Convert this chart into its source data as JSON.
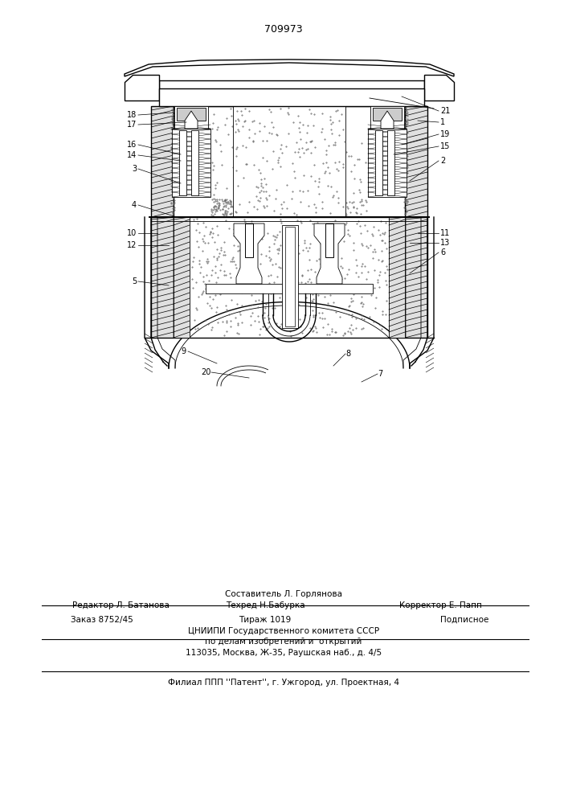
{
  "patent_number": "709973",
  "bg_color": "#ffffff",
  "line_color": "#000000",
  "footer_text_1": "Составитель Л. Горлянова",
  "footer_text_2_left": "Редактор Л. Батанова",
  "footer_text_2_mid": "Техред Н.Бабурка",
  "footer_text_2_right": "Корректор Е. Папп",
  "footer_text_3_left": "Заказ 8752/45",
  "footer_text_3_mid": "Тираж 1019",
  "footer_text_3_right": "Подписное",
  "footer_text_4": "ЦНИИПИ Государственного комитета СССР",
  "footer_text_5": "по делам изобретений и  открытий",
  "footer_text_6": "113035, Москва, Ж-35, Раушская наб., д. 4/5",
  "footer_text_7": "Филиал ППП ''Патент'', г. Ужгород, ул. Проектная, 4"
}
